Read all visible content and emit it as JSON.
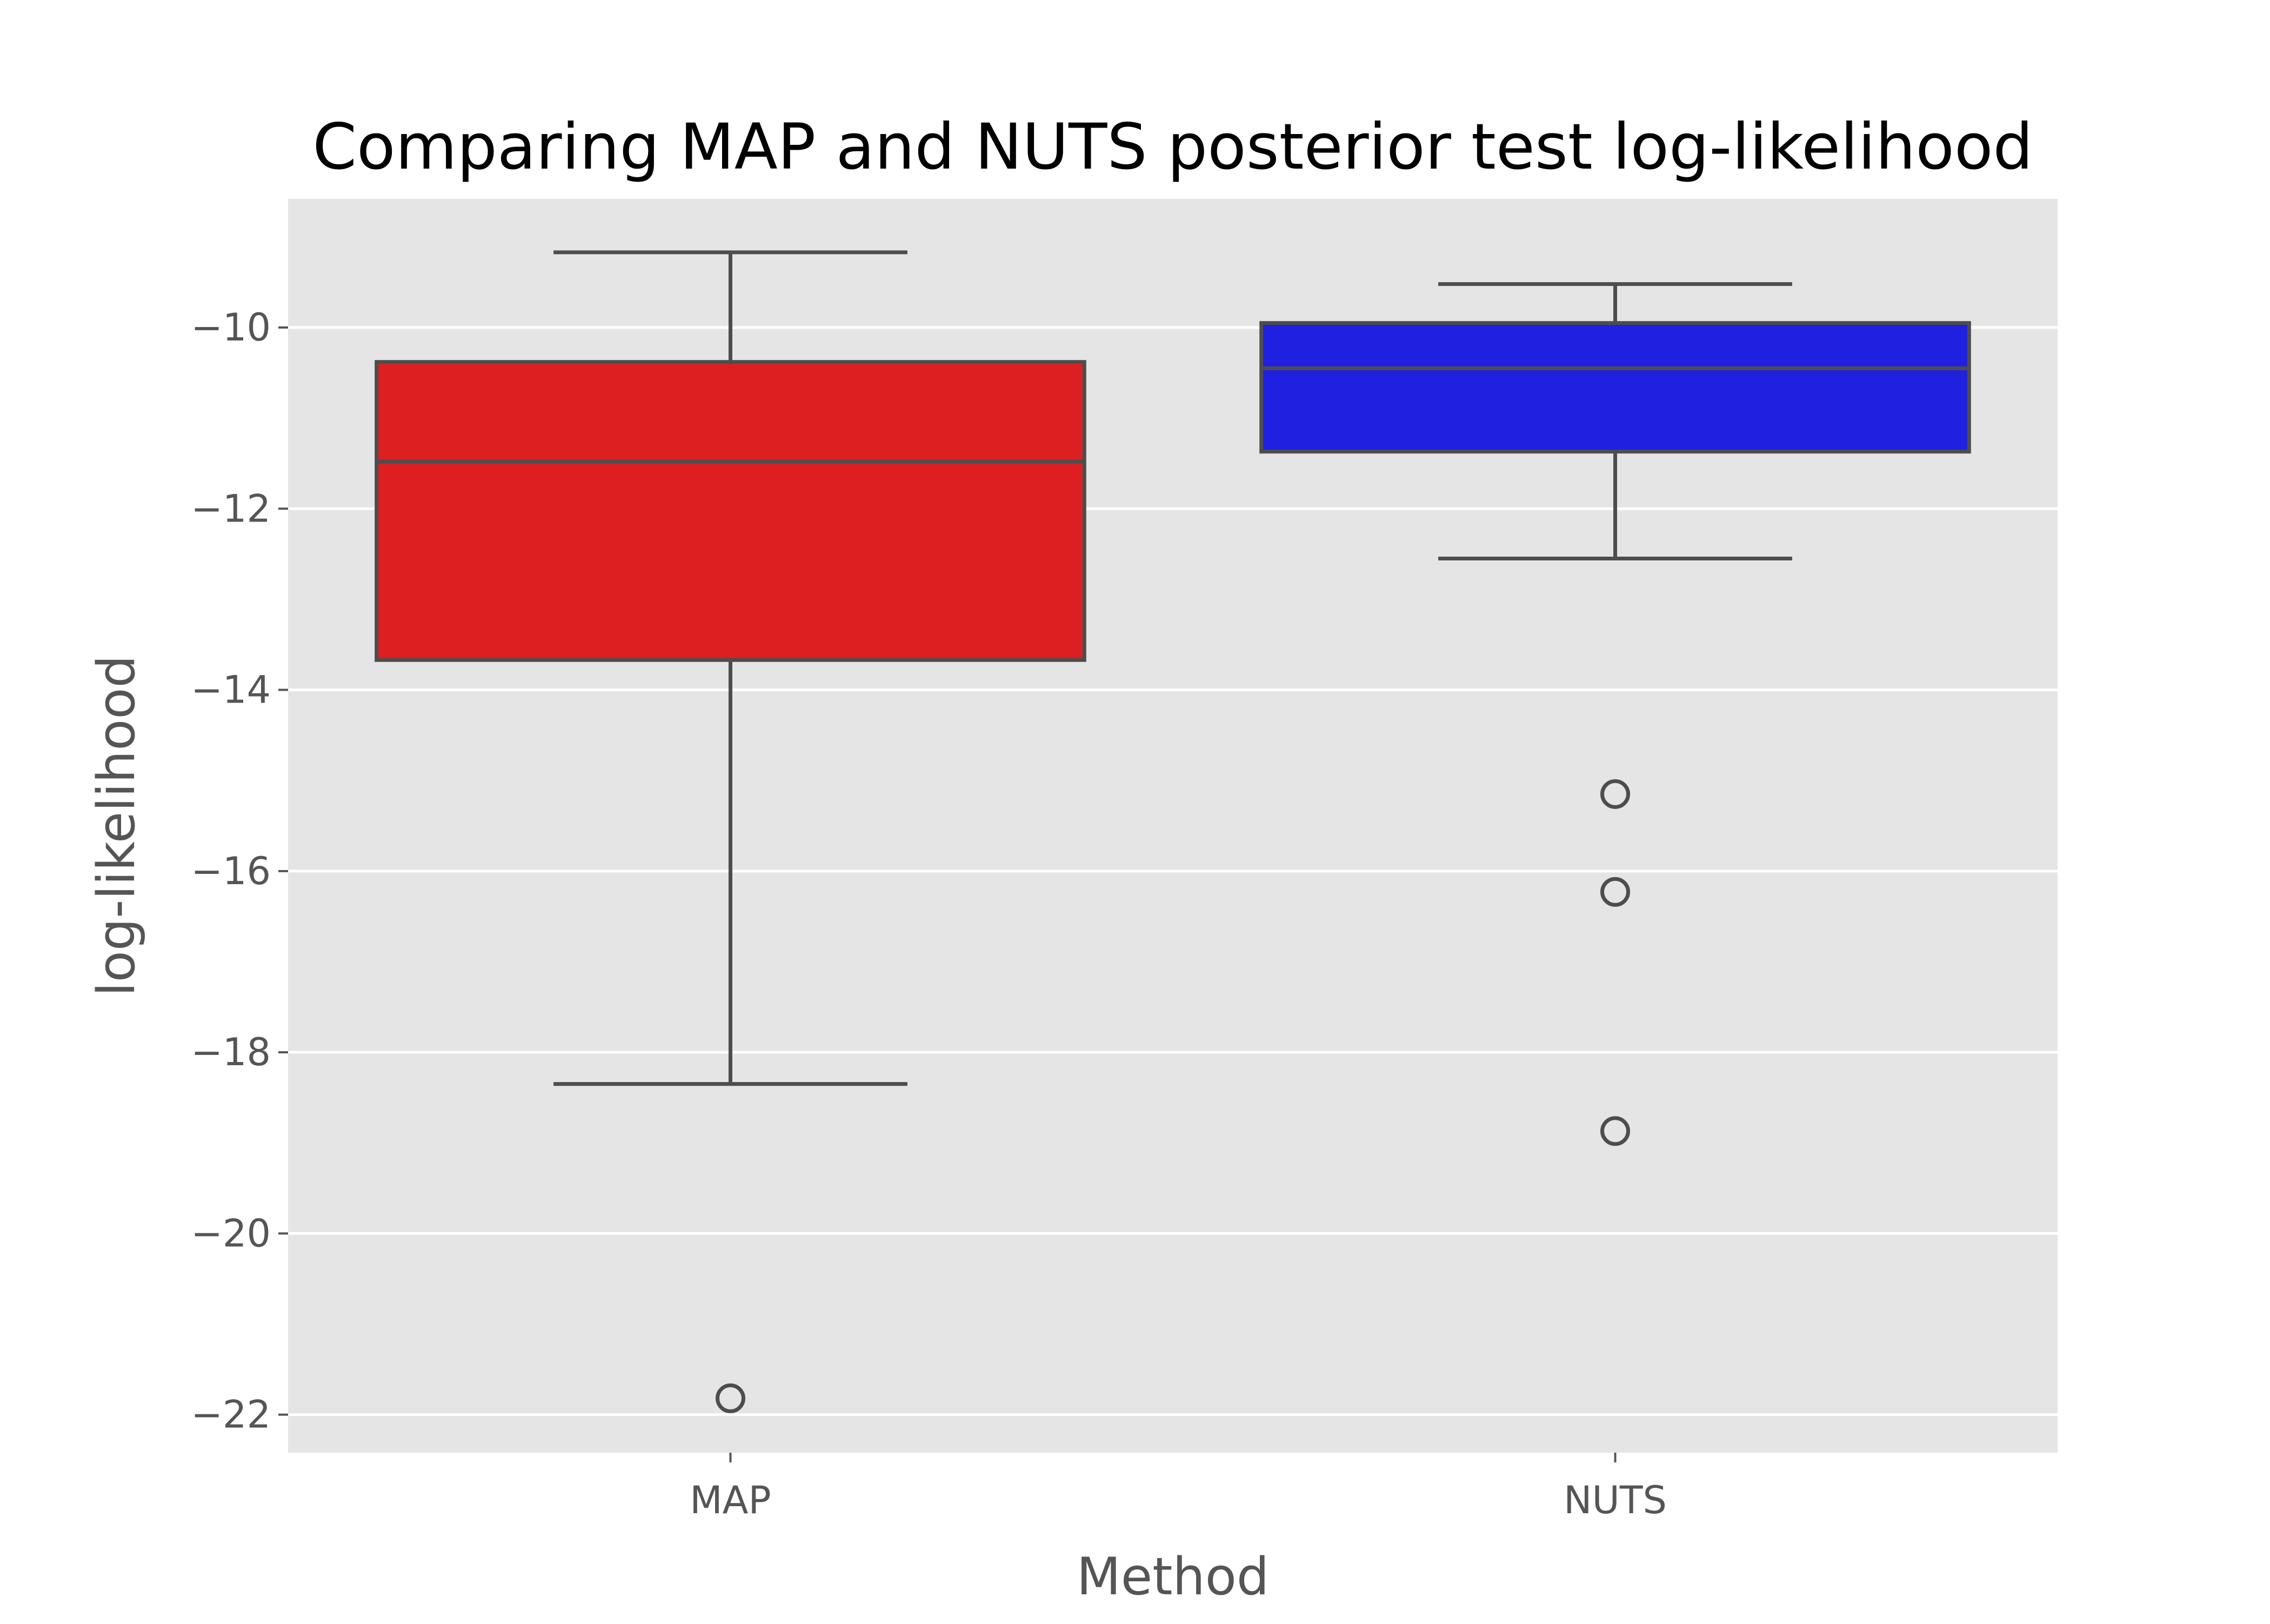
{
  "chart_data": {
    "type": "box",
    "title": "Comparing MAP and NUTS posterior test log-likelihood",
    "xlabel": "Method",
    "ylabel": "log-likelihood",
    "categories": [
      "MAP",
      "NUTS"
    ],
    "ylim": [
      -22.42,
      -8.58
    ],
    "yticks": [
      -22,
      -20,
      -18,
      -16,
      -14,
      -12,
      -10
    ],
    "ytick_labels": [
      "−22",
      "−20",
      "−18",
      "−16",
      "−14",
      "−12",
      "−10"
    ],
    "grid": true,
    "style": "ggplot",
    "boxes": [
      {
        "name": "MAP",
        "color": "#dd1f21",
        "whisker_low": -18.35,
        "q1": -13.67,
        "median": -11.48,
        "q3": -10.38,
        "whisker_high": -9.17,
        "outliers": [
          -21.82
        ]
      },
      {
        "name": "NUTS",
        "color": "#2020e0",
        "whisker_low": -12.55,
        "q1": -11.37,
        "median": -10.45,
        "q3": -9.95,
        "whisker_high": -9.52,
        "outliers": [
          -15.15,
          -16.23,
          -18.87
        ]
      }
    ]
  },
  "colors": {
    "plot_background": "#e5e5e5",
    "grid": "#ffffff",
    "box_edge": "#4d4d4d",
    "tick_text": "#555555",
    "title_text": "#000000"
  }
}
